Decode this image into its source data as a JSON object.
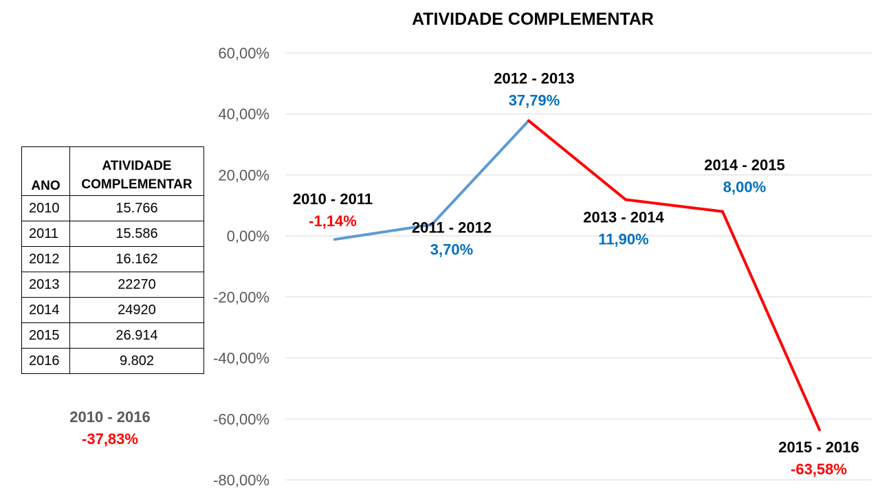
{
  "chart_data": {
    "type": "line",
    "title": "ATIVIDADE COMPLEMENTAR",
    "xlabel": "",
    "ylabel": "",
    "ylim": [
      -80,
      60
    ],
    "y_ticks": [
      "60,00%",
      "40,00%",
      "20,00%",
      "0,00%",
      "-20,00%",
      "-40,00%",
      "-60,00%",
      "-80,00%"
    ],
    "grid": true,
    "categories": [
      "2010 - 2011",
      "2011 - 2012",
      "2012 - 2013",
      "2013 - 2014",
      "2014 - 2015",
      "2015 - 2016"
    ],
    "values": [
      -1.14,
      3.7,
      37.79,
      11.9,
      8.0,
      -63.58
    ],
    "value_labels": [
      "-1,14%",
      "3,70%",
      "37,79%",
      "11,90%",
      "8,00%",
      "-63,58%"
    ],
    "colors": {
      "increase_line": "#5b9bd5",
      "decrease_line": "#ff0000",
      "positive_label": "#0070c0",
      "negative_label": "#ff0000",
      "grid": "#d9d9d9",
      "tick": "#595959"
    }
  },
  "table": {
    "headers": [
      "ANO",
      "ATIVIDADE COMPLEMENTAR"
    ],
    "rows": [
      [
        "2010",
        "15.766"
      ],
      [
        "2011",
        "15.586"
      ],
      [
        "2012",
        "16.162"
      ],
      [
        "2013",
        "22270"
      ],
      [
        "2014",
        "24920"
      ],
      [
        "2015",
        "26.914"
      ],
      [
        "2016",
        "9.802"
      ]
    ]
  },
  "summary": {
    "period": "2010 - 2016",
    "value": "-37,83%"
  }
}
